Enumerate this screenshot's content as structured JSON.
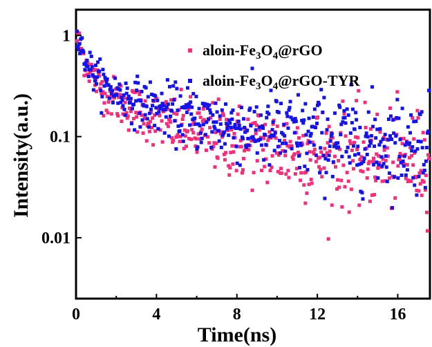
{
  "chart_data": {
    "type": "scatter",
    "title": "",
    "xlabel": "Time(ns)",
    "ylabel": "Intensity(a.u.)",
    "xlim": [
      0,
      17.6
    ],
    "ylim": [
      0.0025,
      1.8
    ],
    "yscale": "log",
    "grid": false,
    "legend_position": "top-right",
    "x_ticks": [
      0,
      4,
      8,
      12,
      16
    ],
    "x_tick_labels": [
      "0",
      "4",
      "8",
      "12",
      "16"
    ],
    "y_ticks": [
      1,
      0.1,
      0.01
    ],
    "y_tick_labels": [
      "1",
      "0.1",
      "0.01"
    ],
    "series": [
      {
        "name": "aloin-Fe3O4@rGO",
        "legend_parts": [
          "aloin-Fe",
          "3",
          "O",
          "4",
          "@rGO"
        ],
        "color": "#f0307a",
        "decay": {
          "a1": 0.66,
          "tau1_ns": 0.5,
          "a2": 0.27,
          "tau2_ns": 3.4,
          "a3": 0.07,
          "tau3_ns": 80
        },
        "spread_decades": 0.16,
        "points_per_ns": 28
      },
      {
        "name": "aloin-Fe3O4@rGO-TYR",
        "legend_parts": [
          "aloin-Fe",
          "3",
          "O",
          "4",
          "@rGO-TYR"
        ],
        "color": "#1414e6",
        "decay": {
          "a1": 0.62,
          "tau1_ns": 0.5,
          "a2": 0.28,
          "tau2_ns": 3.8,
          "a3": 0.1,
          "tau3_ns": 80
        },
        "spread_decades": 0.15,
        "points_per_ns": 28
      }
    ]
  }
}
